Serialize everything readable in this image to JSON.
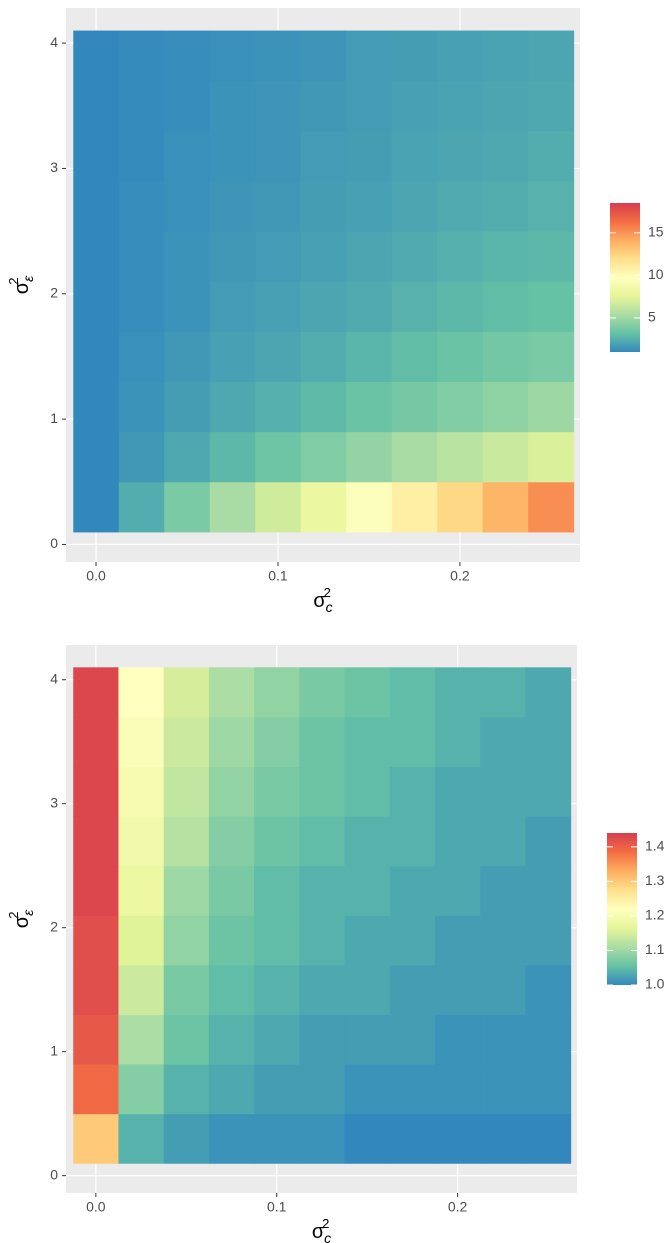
{
  "chart_data": [
    {
      "type": "heatmap",
      "xlabel": {
        "base": "σ",
        "sub": "c",
        "sup": "2"
      },
      "ylabel": {
        "base": "σ",
        "sub": "ε",
        "sup": "2"
      },
      "x": [
        0,
        0.025,
        0.05,
        0.075,
        0.1,
        0.125,
        0.15,
        0.175,
        0.2,
        0.225,
        0.25
      ],
      "y": [
        0.3,
        0.7,
        1.1,
        1.5,
        1.9,
        2.3,
        2.7,
        3.1,
        3.5,
        3.9
      ],
      "values": [
        [
          1,
          2.4,
          3.8,
          5.3,
          6.7,
          8.1,
          9.5,
          10.9,
          12.3,
          13.8,
          15.2
        ],
        [
          1,
          1.6,
          2.2,
          2.8,
          3.4,
          4.0,
          4.6,
          5.3,
          5.9,
          6.5,
          7.1
        ],
        [
          1,
          1.4,
          1.8,
          2.2,
          2.5,
          2.9,
          3.3,
          3.7,
          4.1,
          4.5,
          4.9
        ],
        [
          1,
          1.3,
          1.6,
          1.9,
          2.1,
          2.4,
          2.7,
          3.0,
          3.3,
          3.6,
          3.8
        ],
        [
          1,
          1.2,
          1.4,
          1.7,
          1.9,
          2.1,
          2.3,
          2.6,
          2.8,
          3.0,
          3.2
        ],
        [
          1,
          1.2,
          1.4,
          1.6,
          1.7,
          1.9,
          2.1,
          2.3,
          2.5,
          2.7,
          2.8
        ],
        [
          1,
          1.2,
          1.3,
          1.5,
          1.6,
          1.8,
          1.9,
          2.1,
          2.3,
          2.4,
          2.6
        ],
        [
          1,
          1.1,
          1.3,
          1.4,
          1.5,
          1.7,
          1.8,
          2.0,
          2.1,
          2.2,
          2.4
        ],
        [
          1,
          1.1,
          1.2,
          1.4,
          1.5,
          1.6,
          1.7,
          1.9,
          2.0,
          2.1,
          2.2
        ],
        [
          1,
          1.1,
          1.2,
          1.3,
          1.4,
          1.5,
          1.7,
          1.8,
          1.9,
          2.0,
          2.1
        ]
      ],
      "xlim": [
        -0.0165,
        0.266
      ],
      "ylim": [
        -0.14,
        4.28
      ],
      "xticks": [
        {
          "value": 0,
          "label": "0.0"
        },
        0.1,
        0.2
      ],
      "yticks": [
        0,
        1,
        2,
        3,
        4
      ],
      "clim": [
        1,
        18.5
      ],
      "cticks": [
        5,
        10,
        15
      ],
      "colors": [
        "#3288bd",
        "#66c2a5",
        "#abdda4",
        "#e6f598",
        "#ffffbf",
        "#fee08b",
        "#fdae61",
        "#f46d43",
        "#d53e4f"
      ],
      "grid": true
    },
    {
      "type": "heatmap",
      "xlabel": {
        "base": "σ",
        "sub": "c",
        "sup": "2"
      },
      "ylabel": {
        "base": "σ",
        "sub": "ε",
        "sup": "2"
      },
      "x": [
        0,
        0.025,
        0.05,
        0.075,
        0.1,
        0.125,
        0.15,
        0.175,
        0.2,
        0.225,
        0.25
      ],
      "y": [
        0.3,
        0.7,
        1.1,
        1.5,
        1.9,
        2.3,
        2.7,
        3.1,
        3.5,
        3.9
      ],
      "values": [
        [
          1.3,
          1.04,
          1.02,
          1.01,
          1.01,
          1.01,
          1.0,
          1.0,
          1.0,
          1.0,
          1.0
        ],
        [
          1.39,
          1.08,
          1.04,
          1.03,
          1.02,
          1.02,
          1.01,
          1.01,
          1.01,
          1.01,
          1.01
        ],
        [
          1.41,
          1.11,
          1.06,
          1.04,
          1.03,
          1.02,
          1.02,
          1.02,
          1.01,
          1.01,
          1.01
        ],
        [
          1.42,
          1.14,
          1.07,
          1.05,
          1.04,
          1.03,
          1.03,
          1.02,
          1.02,
          1.02,
          1.01
        ],
        [
          1.42,
          1.16,
          1.09,
          1.06,
          1.05,
          1.04,
          1.03,
          1.03,
          1.02,
          1.02,
          1.02
        ],
        [
          1.43,
          1.18,
          1.1,
          1.07,
          1.05,
          1.04,
          1.04,
          1.03,
          1.03,
          1.02,
          1.02
        ],
        [
          1.43,
          1.19,
          1.12,
          1.08,
          1.06,
          1.05,
          1.04,
          1.04,
          1.03,
          1.03,
          1.02
        ],
        [
          1.43,
          1.2,
          1.13,
          1.09,
          1.07,
          1.06,
          1.05,
          1.04,
          1.03,
          1.03,
          1.03
        ],
        [
          1.43,
          1.21,
          1.14,
          1.1,
          1.08,
          1.06,
          1.05,
          1.05,
          1.04,
          1.03,
          1.03
        ],
        [
          1.43,
          1.22,
          1.15,
          1.11,
          1.09,
          1.07,
          1.06,
          1.05,
          1.04,
          1.04,
          1.03
        ]
      ],
      "xlim": [
        -0.0165,
        0.266
      ],
      "ylim": [
        -0.14,
        4.28
      ],
      "xticks": [
        {
          "value": 0,
          "label": "0.0"
        },
        0.1,
        0.2
      ],
      "yticks": [
        0,
        1,
        2,
        3,
        4
      ],
      "clim": [
        1,
        1.44
      ],
      "cticks": [
        {
          "value": 1,
          "label": "1.0"
        },
        1.1,
        1.2,
        1.3,
        1.4
      ],
      "colors": [
        "#3288bd",
        "#66c2a5",
        "#abdda4",
        "#e6f598",
        "#ffffbf",
        "#fee08b",
        "#fdae61",
        "#f46d43",
        "#d53e4f"
      ],
      "grid": true
    }
  ]
}
